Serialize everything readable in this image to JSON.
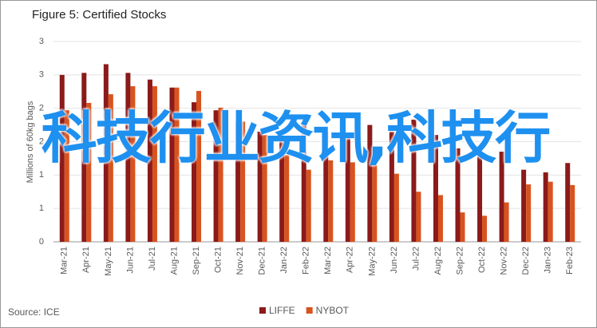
{
  "chart_data": {
    "type": "bar",
    "title": "Figure 5: Certified Stocks",
    "y_label": "Millions of 60kg bags",
    "source": "Source: ICE",
    "overlay_text": "科技行业资讯,科技行",
    "categories": [
      "Mar-21",
      "Apr-21",
      "May-21",
      "Jun-21",
      "Jul-21",
      "Aug-21",
      "Sep-21",
      "Oct-21",
      "Nov-21",
      "Dec-21",
      "Jan-22",
      "Feb-22",
      "Mar-22",
      "Apr-22",
      "May-22",
      "Jun-22",
      "Jul-22",
      "Aug-22",
      "Sep-22",
      "Oct-22",
      "Nov-22",
      "Dec-22",
      "Jan-23",
      "Feb-23"
    ],
    "series": [
      {
        "name": "LIFFE",
        "color": "#8b1a1a",
        "values": [
          2.5,
          2.53,
          2.66,
          2.53,
          2.43,
          2.31,
          2.09,
          1.97,
          1.8,
          1.65,
          1.65,
          1.75,
          1.65,
          1.6,
          1.75,
          1.65,
          1.83,
          1.6,
          1.4,
          1.3,
          1.35,
          1.08,
          1.04,
          1.18
        ]
      },
      {
        "name": "NYBOT",
        "color": "#d9531e",
        "values": [
          1.97,
          2.08,
          2.21,
          2.33,
          2.33,
          2.31,
          2.26,
          2.01,
          1.8,
          1.6,
          1.3,
          1.08,
          1.22,
          1.19,
          1.15,
          1.02,
          0.75,
          0.7,
          0.44,
          0.39,
          0.59,
          0.86,
          0.9,
          0.85
        ]
      }
    ],
    "ylim": [
      0,
      3
    ],
    "yticks": [
      0,
      {
        "value": 0.5,
        "label": "1"
      },
      1,
      {
        "value": 1.5,
        "label": "2"
      },
      2,
      {
        "value": 2.5,
        "label": "3"
      },
      3
    ],
    "grid": true,
    "legend": "bottom"
  }
}
